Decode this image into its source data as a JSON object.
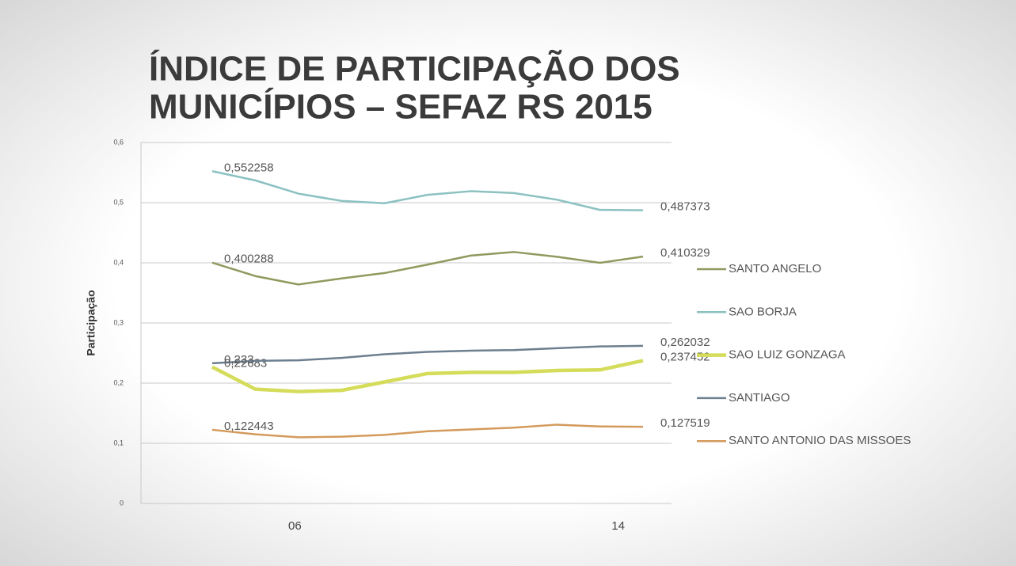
{
  "chart_data": {
    "type": "line",
    "title": [
      "ÍNDICE DE PARTICIPAÇÃO DOS",
      "MUNICÍPIOS – SEFAZ RS 2015"
    ],
    "y_label": "Participação",
    "categories": [
      null,
      "06",
      null,
      null,
      null,
      null,
      null,
      null,
      null,
      "14",
      null
    ],
    "ylim": [
      0,
      0.6
    ],
    "yticks": [
      {
        "value": 0,
        "label": "0"
      },
      {
        "value": 0.1,
        "label": "0,1"
      },
      {
        "value": 0.2,
        "label": "0,2"
      },
      {
        "value": 0.3,
        "label": "0,3"
      },
      {
        "value": 0.4,
        "label": "0,4"
      },
      {
        "value": 0.5,
        "label": "0,5"
      },
      {
        "value": 0.6,
        "label": "0,6"
      }
    ],
    "grid": true,
    "legend": "right",
    "series": [
      {
        "name": "SANTO ANGELO",
        "color": "#8f9a5e",
        "width": 2.5,
        "values": [
          0.400288,
          0.378,
          0.364,
          0.374,
          0.383,
          0.397,
          0.412,
          0.418,
          0.41,
          0.4,
          0.410329
        ],
        "value_labels": [
          "0,400288",
          null,
          null,
          null,
          null,
          null,
          null,
          null,
          null,
          null,
          "0,410329"
        ]
      },
      {
        "name": "SAO BORJA",
        "color": "#8cc1c1",
        "width": 2.5,
        "values": [
          0.552258,
          0.537,
          0.515,
          0.503,
          0.499,
          0.513,
          0.519,
          0.516,
          0.505,
          0.488,
          0.487373
        ],
        "value_labels": [
          "0,552258",
          null,
          null,
          null,
          null,
          null,
          null,
          null,
          null,
          null,
          "0,487373"
        ]
      },
      {
        "name": "SAO LUIZ GONZAGA",
        "color": "#d4dc5a",
        "width": 4.5,
        "values": [
          0.22683,
          0.19,
          0.186,
          0.188,
          0.202,
          0.216,
          0.218,
          0.218,
          0.221,
          0.222,
          0.237452
        ],
        "value_labels": [
          "0,22683",
          null,
          null,
          null,
          null,
          null,
          null,
          null,
          null,
          null,
          "0,237452"
        ]
      },
      {
        "name": "SANTIAGO",
        "color": "#6d7f8f",
        "width": 2.5,
        "values": [
          0.233,
          0.237,
          0.238,
          0.242,
          0.248,
          0.252,
          0.254,
          0.255,
          0.258,
          0.261,
          0.262032
        ],
        "value_labels": [
          "0,233",
          null,
          null,
          null,
          null,
          null,
          null,
          null,
          null,
          null,
          "0,262032"
        ]
      },
      {
        "name": "SANTO ANTONIO DAS MISSOES",
        "color": "#d49a5c",
        "width": 2.5,
        "values": [
          0.122443,
          0.115,
          0.11,
          0.111,
          0.114,
          0.12,
          0.123,
          0.126,
          0.131,
          0.128,
          0.127519
        ],
        "value_labels": [
          "0,122443",
          null,
          null,
          null,
          null,
          null,
          null,
          null,
          null,
          null,
          "0,127519"
        ]
      }
    ]
  }
}
